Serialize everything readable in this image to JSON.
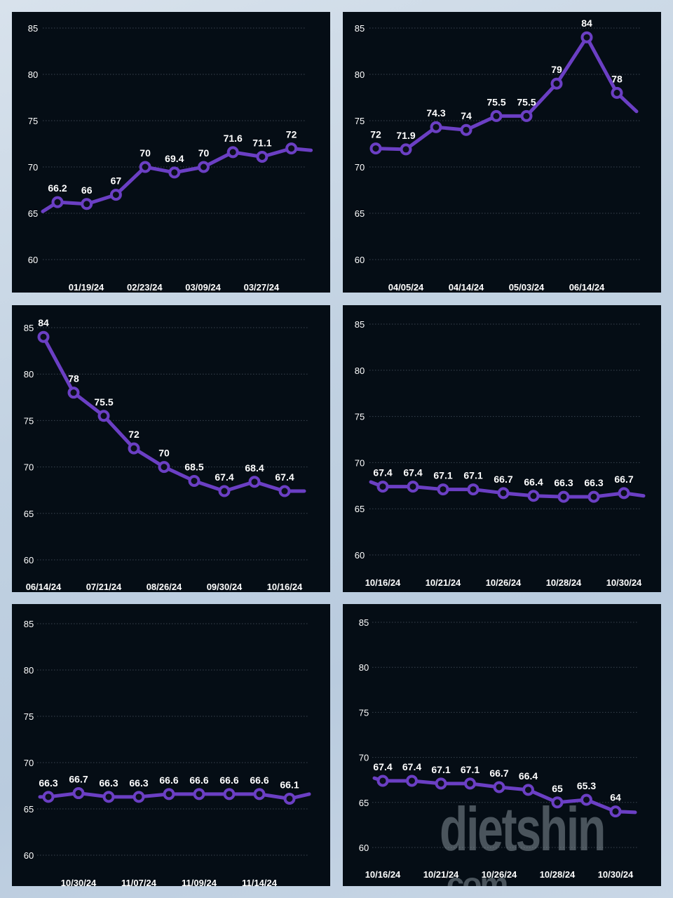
{
  "layout": {
    "line_color": "#6b3fc4",
    "panel_bg": "#050d15",
    "text_color": "#ffffff",
    "grid_color": "#3a4450"
  },
  "watermark": {
    "text": "dietshin",
    "suffix": ".com"
  },
  "chart_data": [
    {
      "type": "line",
      "title": "",
      "ylim": [
        60,
        85
      ],
      "yticks": [
        85,
        80,
        75,
        70,
        65,
        60
      ],
      "xtick_labels": [
        "01/19/24",
        "02/23/24",
        "03/09/24",
        "03/27/24"
      ],
      "point_labels": [
        "66.2",
        "66",
        "67",
        "70",
        "69.4",
        "70",
        "71.6",
        "71.1",
        "72"
      ],
      "values": [
        66.2,
        66,
        67,
        70,
        69.4,
        70,
        71.6,
        71.1,
        72
      ],
      "lead_in": 65.2,
      "trail_out": 71.8
    },
    {
      "type": "line",
      "title": "",
      "ylim": [
        60,
        85
      ],
      "yticks": [
        85,
        80,
        75,
        70,
        65,
        60
      ],
      "xtick_labels": [
        "04/05/24",
        "04/14/24",
        "05/03/24",
        "06/14/24"
      ],
      "point_labels": [
        "72",
        "71.9",
        "74.3",
        "74",
        "75.5",
        "75.5",
        "79",
        "84",
        "78"
      ],
      "values": [
        72,
        71.9,
        74.3,
        74,
        75.5,
        75.5,
        79,
        84,
        78
      ],
      "lead_in": null,
      "trail_out": 76
    },
    {
      "type": "line",
      "title": "",
      "ylim": [
        60,
        85
      ],
      "yticks": [
        85,
        80,
        75,
        70,
        65,
        60
      ],
      "xtick_labels": [
        "06/14/24",
        "07/21/24",
        "08/26/24",
        "09/30/24",
        "10/16/24"
      ],
      "point_labels": [
        "84",
        "78",
        "75.5",
        "72",
        "70",
        "68.5",
        "67.4",
        "68.4",
        "67.4"
      ],
      "values": [
        84,
        78,
        75.5,
        72,
        70,
        68.5,
        67.4,
        68.4,
        67.4
      ],
      "lead_in": null,
      "trail_out": 67.4
    },
    {
      "type": "line",
      "title": "",
      "ylim": [
        60,
        85
      ],
      "yticks": [
        85,
        80,
        75,
        70,
        65,
        60
      ],
      "xtick_labels": [
        "10/16/24",
        "10/21/24",
        "10/26/24",
        "10/28/24",
        "10/30/24"
      ],
      "point_labels": [
        "67.4",
        "67.4",
        "67.1",
        "67.1",
        "66.7",
        "66.4",
        "66.3",
        "66.3",
        "66.7"
      ],
      "values": [
        67.4,
        67.4,
        67.1,
        67.1,
        66.7,
        66.4,
        66.3,
        66.3,
        66.7
      ],
      "lead_in": 67.9,
      "trail_out": 66.4
    },
    {
      "type": "line",
      "title": "",
      "ylim": [
        60,
        85
      ],
      "yticks": [
        85,
        80,
        75,
        70,
        65,
        60
      ],
      "xtick_labels": [
        "10/30/24",
        "11/07/24",
        "11/09/24",
        "11/14/24"
      ],
      "point_labels": [
        "66.3",
        "66.7",
        "66.3",
        "66.3",
        "66.6",
        "66.6",
        "66.6",
        "66.6",
        "66.1"
      ],
      "values": [
        66.3,
        66.7,
        66.3,
        66.3,
        66.6,
        66.6,
        66.6,
        66.6,
        66.1
      ],
      "lead_in": 66.3,
      "trail_out": 66.6
    },
    {
      "type": "line",
      "title": "",
      "ylim": [
        60,
        85
      ],
      "yticks": [
        85,
        80,
        75,
        70,
        65,
        60
      ],
      "xtick_labels": [
        "10/16/24",
        "10/21/24",
        "10/26/24",
        "10/28/24",
        "10/30/24"
      ],
      "point_labels": [
        "67.4",
        "67.4",
        "67.1",
        "67.1",
        "66.7",
        "66.4",
        "65",
        "65.3",
        "64"
      ],
      "values": [
        67.4,
        67.4,
        67.1,
        67.1,
        66.7,
        66.4,
        65,
        65.3,
        64
      ],
      "lead_in": 67.7,
      "trail_out": 63.9
    }
  ]
}
